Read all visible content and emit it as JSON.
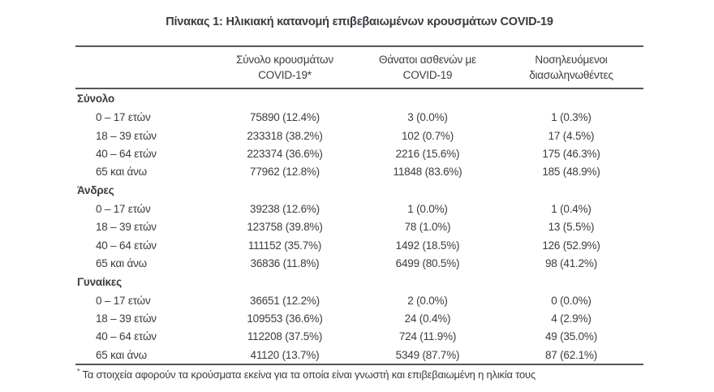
{
  "title": "Πίνακας 1: Ηλικιακή κατανομή επιβεβαιωμένων κρουσμάτων COVID-19",
  "table": {
    "columns": [
      {
        "line1": "Σύνολο κρουσμάτων",
        "line2": "COVID-19*"
      },
      {
        "line1": "Θάνατοι ασθενών με",
        "line2": "COVID-19"
      },
      {
        "line1": "Νοσηλευόμενοι",
        "line2": "διασωληνωθέντες"
      }
    ],
    "sections": [
      {
        "label": "Σύνολο",
        "rows": [
          {
            "age": "0 – 17 ετών",
            "cases": "75890 (12.4%)",
            "deaths": "3 (0.0%)",
            "intubated": "1 (0.3%)"
          },
          {
            "age": "18 – 39 ετών",
            "cases": "233318 (38.2%)",
            "deaths": "102 (0.7%)",
            "intubated": "17 (4.5%)"
          },
          {
            "age": "40 – 64 ετών",
            "cases": "223374 (36.6%)",
            "deaths": "2216 (15.6%)",
            "intubated": "175 (46.3%)"
          },
          {
            "age": "65 και άνω",
            "cases": "77962 (12.8%)",
            "deaths": "11848 (83.6%)",
            "intubated": "185 (48.9%)"
          }
        ]
      },
      {
        "label": "Άνδρες",
        "rows": [
          {
            "age": "0 – 17 ετών",
            "cases": "39238 (12.6%)",
            "deaths": "1 (0.0%)",
            "intubated": "1 (0.4%)"
          },
          {
            "age": "18 – 39 ετών",
            "cases": "123758 (39.8%)",
            "deaths": "78 (1.0%)",
            "intubated": "13 (5.5%)"
          },
          {
            "age": "40 – 64 ετών",
            "cases": "111152 (35.7%)",
            "deaths": "1492 (18.5%)",
            "intubated": "126 (52.9%)"
          },
          {
            "age": "65 και άνω",
            "cases": "36836 (11.8%)",
            "deaths": "6499 (80.5%)",
            "intubated": "98 (41.2%)"
          }
        ]
      },
      {
        "label": "Γυναίκες",
        "rows": [
          {
            "age": "0 – 17 ετών",
            "cases": "36651 (12.2%)",
            "deaths": "2 (0.0%)",
            "intubated": "0 (0.0%)"
          },
          {
            "age": "18 – 39 ετών",
            "cases": "109553 (36.6%)",
            "deaths": "24 (0.4%)",
            "intubated": "4 (2.9%)"
          },
          {
            "age": "40 – 64 ετών",
            "cases": "112208 (37.5%)",
            "deaths": "724 (11.9%)",
            "intubated": "49 (35.0%)"
          },
          {
            "age": "65 και άνω",
            "cases": "41120 (13.7%)",
            "deaths": "5349 (87.7%)",
            "intubated": "87 (62.1%)"
          }
        ]
      }
    ]
  },
  "footnote": {
    "marker": "*",
    "text": "Τα στοιχεία αφορούν τα κρούσματα εκείνα για τα οποία είναι γνωστή και επιβεβαιωμένη η ηλικία τους"
  },
  "colors": {
    "text": "#3b3b43",
    "rule": "#55555b",
    "background": "#ffffff"
  }
}
